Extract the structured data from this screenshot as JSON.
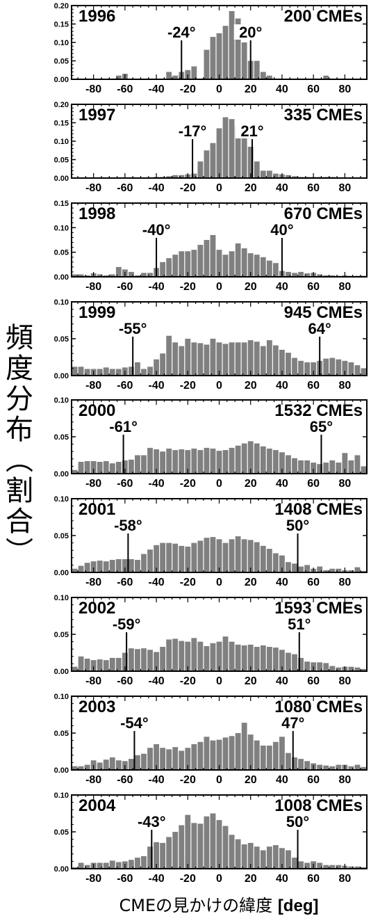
{
  "ylabel": "頻度分布（割合）",
  "xlabel_text": "CMEの見かけの緯度",
  "xlabel_unit": "[deg]",
  "bar_color": "#808080",
  "chart_data": [
    {
      "type": "bar",
      "year": "1996",
      "count_label": "200 CMEs",
      "ylim": [
        0,
        0.2
      ],
      "yticks": [
        "0.00",
        "0.05",
        "0.10",
        "0.15",
        "0.20"
      ],
      "ytick_values": [
        0,
        0.05,
        0.1,
        0.15,
        0.2
      ],
      "markers": [
        {
          "x": -24,
          "label": "-24°"
        },
        {
          "x": 20,
          "label": "20°"
        }
      ],
      "values": [
        0.0,
        0.0,
        0.0,
        0.0,
        0.0,
        0.0,
        0.0,
        0.01,
        0.015,
        0.0,
        0.0,
        0.0,
        0.0,
        0.0,
        0.0,
        0.02,
        0.01,
        0.02,
        0.025,
        0.035,
        0.0,
        0.08,
        0.115,
        0.125,
        0.145,
        0.185,
        0.165,
        0.1,
        0.05,
        0.05,
        0.02,
        0.01,
        0.0,
        0.0,
        0.0,
        0.0,
        0.0,
        0.0,
        0.0,
        0.0,
        0.01,
        0.0,
        0.0,
        0.0,
        0.0,
        0.0,
        0.0
      ]
    },
    {
      "type": "bar",
      "year": "1997",
      "count_label": "335 CMEs",
      "ylim": [
        0,
        0.2
      ],
      "yticks": [
        "0.00",
        "0.05",
        "0.10",
        "0.15",
        "0.20"
      ],
      "ytick_values": [
        0,
        0.05,
        0.1,
        0.15,
        0.2
      ],
      "markers": [
        {
          "x": -17,
          "label": "-17°"
        },
        {
          "x": 21,
          "label": "21°"
        }
      ],
      "values": [
        0.0,
        0.0,
        0.0,
        0.0,
        0.0,
        0.0,
        0.0,
        0.0,
        0.0,
        0.0,
        0.0,
        0.0,
        0.0,
        0.003,
        0.003,
        0.005,
        0.008,
        0.008,
        0.01,
        0.012,
        0.045,
        0.075,
        0.095,
        0.135,
        0.165,
        0.16,
        0.14,
        0.12,
        0.085,
        0.045,
        0.02,
        0.02,
        0.012,
        0.01,
        0.008,
        0.005,
        0.003,
        0.003,
        0.003,
        0.003,
        0.003,
        0.003,
        0.0,
        0.0,
        0.0,
        0.0,
        0.0
      ]
    },
    {
      "type": "bar",
      "year": "1998",
      "count_label": "670 CMEs",
      "ylim": [
        0,
        0.15
      ],
      "yticks": [
        "0.00",
        "0.05",
        "0.10",
        "0.15"
      ],
      "ytick_values": [
        0,
        0.05,
        0.1,
        0.15
      ],
      "markers": [
        {
          "x": -40,
          "label": "-40°"
        },
        {
          "x": 40,
          "label": "40°"
        }
      ],
      "values": [
        0.005,
        0.005,
        0.003,
        0.007,
        0.005,
        0.003,
        0.005,
        0.02,
        0.015,
        0.01,
        0.003,
        0.008,
        0.008,
        0.018,
        0.03,
        0.038,
        0.045,
        0.052,
        0.052,
        0.055,
        0.065,
        0.075,
        0.085,
        0.055,
        0.045,
        0.052,
        0.068,
        0.058,
        0.048,
        0.045,
        0.04,
        0.033,
        0.028,
        0.012,
        0.01,
        0.008,
        0.01,
        0.007,
        0.008,
        0.005,
        0.003,
        0.003,
        0.002,
        0.003,
        0.002,
        0.002,
        0.002
      ]
    },
    {
      "type": "bar",
      "year": "1999",
      "count_label": "945 CMEs",
      "ylim": [
        0,
        0.1
      ],
      "yticks": [
        "0.00",
        "0.05",
        "0.10"
      ],
      "ytick_values": [
        0,
        0.05,
        0.1
      ],
      "markers": [
        {
          "x": -55,
          "label": "-55°"
        },
        {
          "x": 64,
          "label": "64°"
        }
      ],
      "values": [
        0.012,
        0.012,
        0.009,
        0.009,
        0.009,
        0.011,
        0.009,
        0.009,
        0.011,
        0.012,
        0.018,
        0.009,
        0.012,
        0.022,
        0.03,
        0.054,
        0.045,
        0.04,
        0.05,
        0.045,
        0.044,
        0.042,
        0.05,
        0.045,
        0.043,
        0.045,
        0.045,
        0.045,
        0.048,
        0.046,
        0.04,
        0.048,
        0.041,
        0.035,
        0.031,
        0.024,
        0.02,
        0.018,
        0.018,
        0.02,
        0.023,
        0.024,
        0.022,
        0.02,
        0.018,
        0.014,
        0.01
      ]
    },
    {
      "type": "bar",
      "year": "2000",
      "count_label": "1532 CMEs",
      "ylim": [
        0,
        0.1
      ],
      "yticks": [
        "0.00",
        "0.05",
        "0.10"
      ],
      "ytick_values": [
        0,
        0.05,
        0.1
      ],
      "markers": [
        {
          "x": -61,
          "label": "-61°"
        },
        {
          "x": 65,
          "label": "65°"
        }
      ],
      "values": [
        0.005,
        0.016,
        0.017,
        0.017,
        0.016,
        0.017,
        0.014,
        0.016,
        0.018,
        0.019,
        0.025,
        0.025,
        0.035,
        0.033,
        0.03,
        0.034,
        0.032,
        0.033,
        0.032,
        0.034,
        0.032,
        0.035,
        0.034,
        0.031,
        0.032,
        0.035,
        0.038,
        0.041,
        0.044,
        0.041,
        0.037,
        0.034,
        0.032,
        0.029,
        0.025,
        0.021,
        0.018,
        0.018,
        0.015,
        0.013,
        0.015,
        0.018,
        0.015,
        0.028,
        0.018,
        0.025,
        0.01
      ]
    },
    {
      "type": "bar",
      "year": "2001",
      "count_label": "1408 CMEs",
      "ylim": [
        0,
        0.1
      ],
      "yticks": [
        "0.00",
        "0.05",
        "0.10"
      ],
      "ytick_values": [
        0,
        0.05,
        0.1
      ],
      "markers": [
        {
          "x": -58,
          "label": "-58°"
        },
        {
          "x": 50,
          "label": "50°"
        }
      ],
      "values": [
        0.005,
        0.009,
        0.013,
        0.015,
        0.016,
        0.015,
        0.017,
        0.018,
        0.018,
        0.018,
        0.017,
        0.025,
        0.031,
        0.037,
        0.04,
        0.04,
        0.039,
        0.036,
        0.035,
        0.04,
        0.043,
        0.047,
        0.048,
        0.045,
        0.04,
        0.045,
        0.049,
        0.045,
        0.044,
        0.041,
        0.036,
        0.032,
        0.026,
        0.023,
        0.014,
        0.012,
        0.008,
        0.01,
        0.005,
        0.008,
        0.003,
        0.005,
        0.005,
        0.003,
        0.003,
        0.007,
        0.002
      ]
    },
    {
      "type": "bar",
      "year": "2002",
      "count_label": "1593 CMEs",
      "ylim": [
        0,
        0.1
      ],
      "yticks": [
        "0.00",
        "0.05",
        "0.10"
      ],
      "ytick_values": [
        0,
        0.05,
        0.1
      ],
      "markers": [
        {
          "x": -59,
          "label": "-59°"
        },
        {
          "x": 51,
          "label": "51°"
        }
      ],
      "values": [
        0.006,
        0.02,
        0.017,
        0.015,
        0.016,
        0.015,
        0.018,
        0.018,
        0.025,
        0.031,
        0.03,
        0.031,
        0.029,
        0.026,
        0.033,
        0.043,
        0.044,
        0.041,
        0.04,
        0.045,
        0.04,
        0.034,
        0.038,
        0.04,
        0.047,
        0.04,
        0.036,
        0.035,
        0.036,
        0.033,
        0.035,
        0.033,
        0.032,
        0.029,
        0.025,
        0.023,
        0.018,
        0.013,
        0.012,
        0.012,
        0.011,
        0.007,
        0.005,
        0.006,
        0.006,
        0.005,
        0.003
      ]
    },
    {
      "type": "bar",
      "year": "2003",
      "count_label": "1080 CMEs",
      "ylim": [
        0,
        0.1
      ],
      "yticks": [
        "0.00",
        "0.05",
        "0.10"
      ],
      "ytick_values": [
        0,
        0.05,
        0.1
      ],
      "markers": [
        {
          "x": -54,
          "label": "-54°"
        },
        {
          "x": 47,
          "label": "47°"
        }
      ],
      "values": [
        0.005,
        0.005,
        0.007,
        0.013,
        0.01,
        0.014,
        0.017,
        0.013,
        0.012,
        0.015,
        0.02,
        0.022,
        0.03,
        0.035,
        0.03,
        0.028,
        0.031,
        0.026,
        0.03,
        0.035,
        0.038,
        0.045,
        0.04,
        0.041,
        0.044,
        0.046,
        0.05,
        0.064,
        0.048,
        0.04,
        0.033,
        0.033,
        0.038,
        0.045,
        0.023,
        0.017,
        0.015,
        0.012,
        0.009,
        0.007,
        0.006,
        0.005,
        0.007,
        0.007,
        0.005,
        0.007,
        0.004
      ]
    },
    {
      "type": "bar",
      "year": "2004",
      "count_label": "1008 CMEs",
      "ylim": [
        0,
        0.1
      ],
      "yticks": [
        "0.00",
        "0.05",
        "0.10"
      ],
      "ytick_values": [
        0,
        0.05,
        0.1
      ],
      "markers": [
        {
          "x": -43,
          "label": "-43°"
        },
        {
          "x": 50,
          "label": "50°"
        }
      ],
      "values": [
        0.002,
        0.008,
        0.005,
        0.008,
        0.008,
        0.008,
        0.011,
        0.009,
        0.01,
        0.012,
        0.015,
        0.017,
        0.03,
        0.036,
        0.035,
        0.043,
        0.05,
        0.059,
        0.073,
        0.062,
        0.061,
        0.071,
        0.075,
        0.066,
        0.058,
        0.046,
        0.04,
        0.033,
        0.035,
        0.03,
        0.025,
        0.03,
        0.032,
        0.028,
        0.025,
        0.015,
        0.01,
        0.008,
        0.01,
        0.008,
        0.005,
        0.005,
        0.005,
        0.004,
        0.003,
        0.003,
        0.002
      ]
    }
  ]
}
